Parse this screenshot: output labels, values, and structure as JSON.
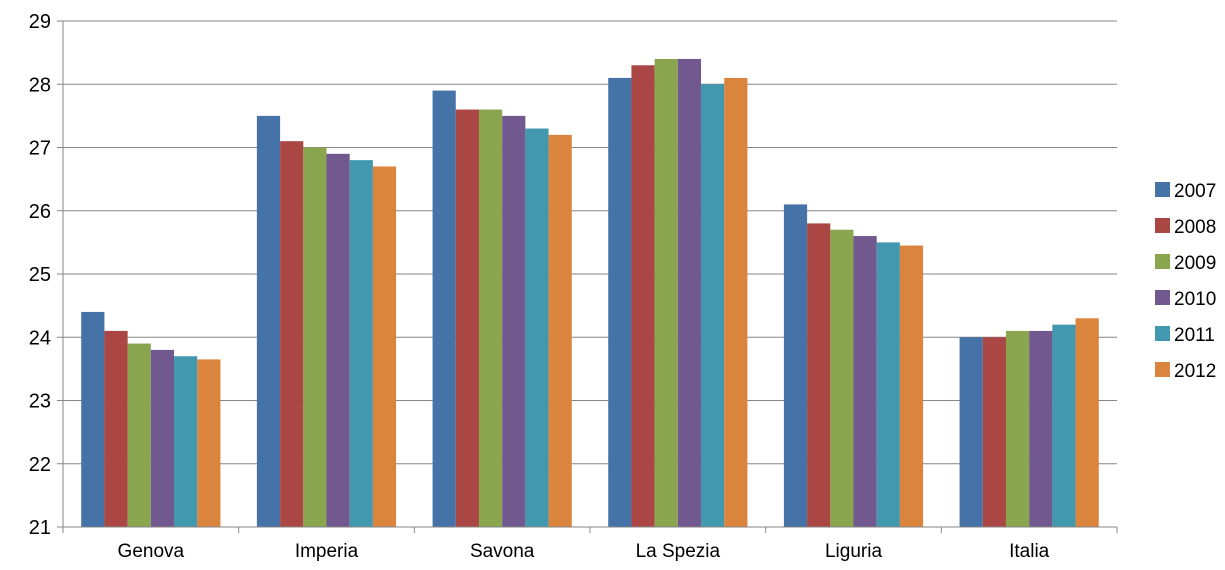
{
  "chart_data": {
    "type": "bar",
    "title": "",
    "xlabel": "",
    "ylabel": "",
    "ylim": [
      21,
      29
    ],
    "yticks": [
      21,
      22,
      23,
      24,
      25,
      26,
      27,
      28,
      29
    ],
    "grid": true,
    "legend_position": "right",
    "categories": [
      "Genova",
      "Imperia",
      "Savona",
      "La Spezia",
      "Liguria",
      "Italia"
    ],
    "series": [
      {
        "name": "2007",
        "color": "#4572A7",
        "values": [
          24.4,
          27.5,
          27.9,
          28.1,
          26.1,
          24.0
        ]
      },
      {
        "name": "2008",
        "color": "#AA4643",
        "values": [
          24.1,
          27.1,
          27.6,
          28.3,
          25.8,
          24.0
        ]
      },
      {
        "name": "2009",
        "color": "#89A54E",
        "values": [
          23.9,
          27.0,
          27.6,
          28.4,
          25.7,
          24.1
        ]
      },
      {
        "name": "2010",
        "color": "#71588F",
        "values": [
          23.8,
          26.9,
          27.5,
          28.4,
          25.6,
          24.1
        ]
      },
      {
        "name": "2011",
        "color": "#4198AF",
        "values": [
          23.7,
          26.8,
          27.3,
          28.0,
          25.5,
          24.2
        ]
      },
      {
        "name": "2012",
        "color": "#DB843D",
        "values": [
          23.65,
          26.7,
          27.2,
          28.1,
          25.45,
          24.3
        ]
      }
    ]
  }
}
